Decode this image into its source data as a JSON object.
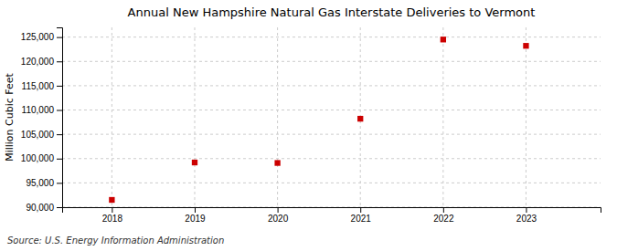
{
  "chart_data": {
    "type": "scatter",
    "title": "Annual New Hampshire Natural Gas Interstate Deliveries to Vermont",
    "y_label": "Million Cubic Feet",
    "annotations": [
      "Source: U.S. Energy Information Administration"
    ],
    "x": [
      2018,
      2019,
      2020,
      2021,
      2022,
      2023
    ],
    "values": [
      91500,
      99200,
      99100,
      108200,
      124500,
      123200
    ],
    "color": "#cc0000",
    "marker": "square",
    "xlim": [
      2017.4,
      2023.9
    ],
    "xticks": [
      2018,
      2019,
      2020,
      2021,
      2022,
      2023
    ],
    "ylim": [
      90000,
      127000
    ],
    "yticks": [
      {
        "value": 90000,
        "label": "90,000"
      },
      {
        "value": 95000,
        "label": "95,000"
      },
      {
        "value": 100000,
        "label": "100,000"
      },
      {
        "value": 105000,
        "label": "105,000"
      },
      {
        "value": 110000,
        "label": "110,000"
      },
      {
        "value": 115000,
        "label": "115,000"
      },
      {
        "value": 120000,
        "label": "120,000"
      },
      {
        "value": 125000,
        "label": "125,000"
      }
    ],
    "grid": true
  }
}
